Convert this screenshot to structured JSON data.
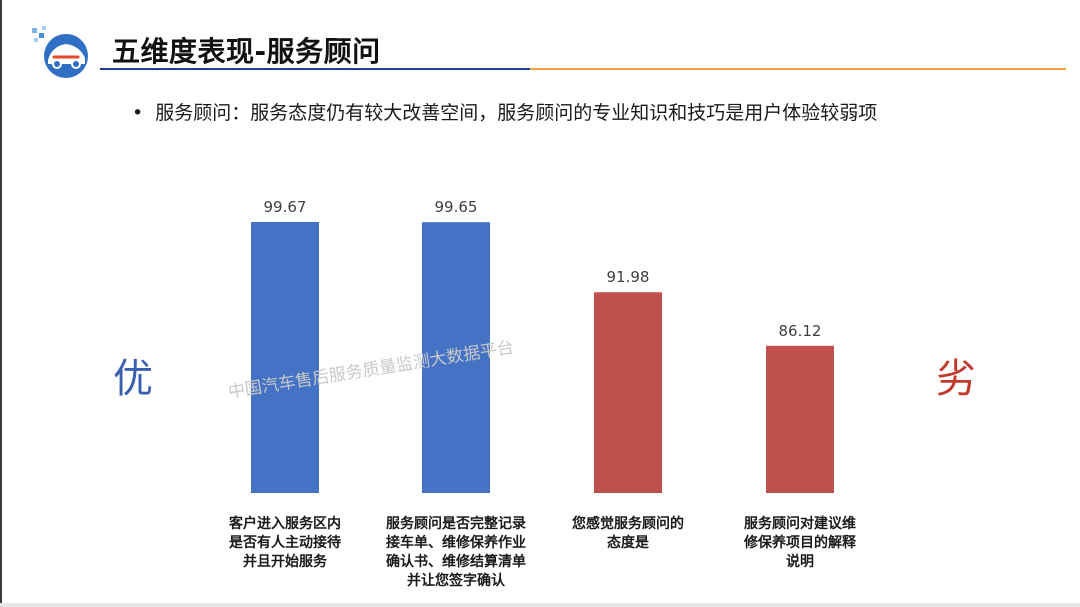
{
  "header": {
    "title": "五维度表现-服务顾问",
    "logo_icon": "car-service-logo-icon"
  },
  "bullet": {
    "mark": "•",
    "text": "服务顾问：服务态度仍有较大改善空间，服务顾问的专业知识和技巧是用户体验较弱项"
  },
  "side_labels": {
    "best": "优",
    "worst": "劣"
  },
  "watermark": "中国汽车售后服务质量监测大数据平台",
  "colors": {
    "blue": "#4472c4",
    "red": "#c0504d",
    "title_rule_blue": "#1f3f8c",
    "title_rule_orange": "#f2a33a"
  },
  "chart_data": {
    "type": "bar",
    "title": "",
    "xlabel": "",
    "ylabel": "",
    "ylim": [
      70,
      100
    ],
    "grid": false,
    "categories": [
      [
        "客户进入服务区内",
        "是否有人主动接待",
        "并且开始服务"
      ],
      [
        "服务顾问是否完整记录",
        "接车单、维修保养作业",
        "确认书、维修结算清单",
        "并让您签字确认"
      ],
      [
        "您感觉服务顾问的",
        "态度是"
      ],
      [
        "服务顾问对建议维",
        "修保养项目的解释",
        "说明"
      ]
    ],
    "values": [
      99.67,
      99.65,
      91.98,
      86.12
    ],
    "value_labels": [
      "99.67",
      "99.65",
      "91.98",
      "86.12"
    ],
    "bar_colors": [
      "#4472c4",
      "#4472c4",
      "#c0504d",
      "#c0504d"
    ]
  }
}
